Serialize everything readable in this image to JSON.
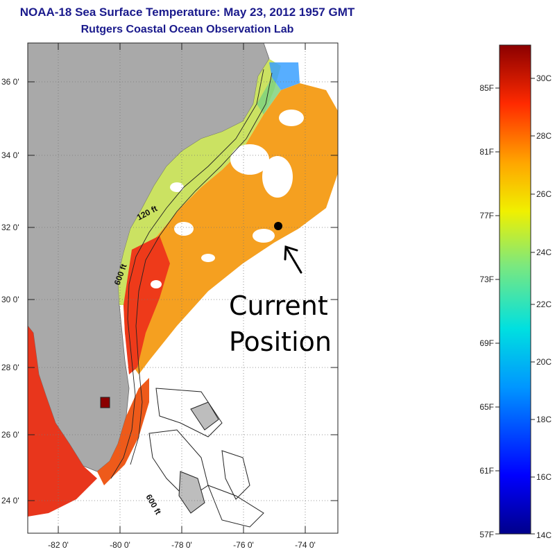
{
  "title": "NOAA-18 Sea Surface Temperature:  May 23, 2012 1957 GMT",
  "subtitle": "Rutgers Coastal Ocean Observation Lab",
  "map": {
    "lat_ticks": [
      "36 0'",
      "34 0'",
      "32 0'",
      "30 0'",
      "28 0'",
      "26 0'",
      "24 0'"
    ],
    "lon_ticks": [
      "-82 0'",
      "-80 0'",
      "-78 0'",
      "-76 0'",
      "-74 0'"
    ],
    "contour_labels": [
      "120 ft",
      "600 ft",
      "600 ft"
    ],
    "annotation_line1": "Current",
    "annotation_line2": "Position",
    "colors": {
      "land": "#a9a9a9",
      "cloud": "#ffffff",
      "marker": "#000000"
    }
  },
  "colorbar": {
    "fahrenheit": [
      "85F",
      "81F",
      "77F",
      "73F",
      "69F",
      "65F",
      "61F",
      "57F"
    ],
    "celsius": [
      "30C",
      "28C",
      "26C",
      "24C",
      "22C",
      "20C",
      "18C",
      "16C",
      "14C"
    ],
    "colors": {
      "min": "#00008b",
      "max": "#8b0000"
    }
  }
}
